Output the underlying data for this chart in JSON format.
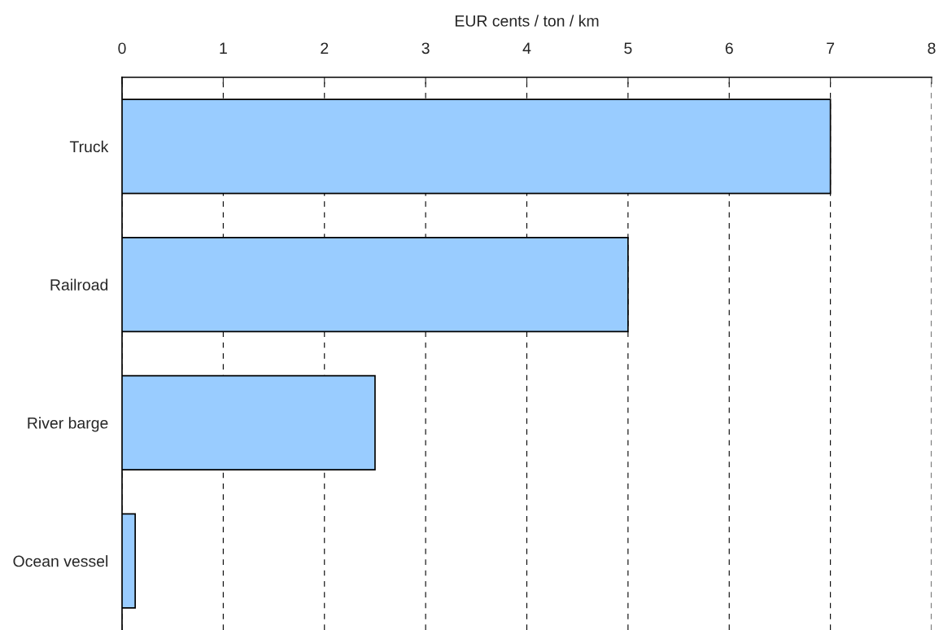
{
  "chart_data": {
    "type": "bar",
    "orientation": "horizontal",
    "xlabel": "EUR cents / ton / km",
    "categories": [
      "Truck",
      "Railroad",
      "River barge",
      "Ocean vessel"
    ],
    "values": [
      7,
      5,
      2.5,
      0.13
    ],
    "color": "#99ccff",
    "xlim": [
      0,
      8
    ],
    "xticks": [
      0,
      1,
      2,
      3,
      4,
      5,
      6,
      7,
      8
    ],
    "grid": "x"
  }
}
